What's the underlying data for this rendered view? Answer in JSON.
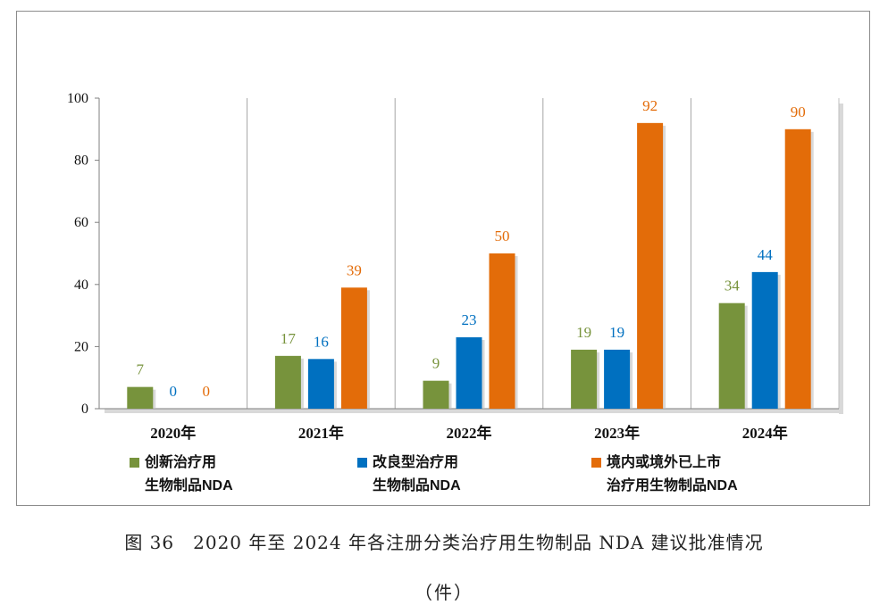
{
  "chart_data": {
    "type": "bar",
    "title": "",
    "xlabel": "",
    "ylabel": "",
    "categories": [
      "2020年",
      "2021年",
      "2022年",
      "2023年",
      "2024年"
    ],
    "ylim": [
      0,
      100
    ],
    "yticks": [
      0,
      20,
      40,
      60,
      80,
      100
    ],
    "grid": false,
    "legend_position": "bottom",
    "series": [
      {
        "name": "创新治疗用生物制品NDA",
        "name_lines": [
          "创新治疗用",
          "生物制品NDA"
        ],
        "color": "#77933c",
        "values": [
          7,
          17,
          9,
          19,
          34
        ]
      },
      {
        "name": "改良型治疗用生物制品NDA",
        "name_lines": [
          "改良型治疗用",
          "生物制品NDA"
        ],
        "color": "#0070c0",
        "values": [
          0,
          16,
          23,
          19,
          44
        ]
      },
      {
        "name": "境内或境外已上市治疗用生物制品NDA",
        "name_lines": [
          "境内或境外已上市",
          "治疗用生物制品NDA"
        ],
        "color": "#e36c09",
        "values": [
          0,
          39,
          50,
          92,
          90
        ]
      }
    ]
  },
  "caption": {
    "line1": "图 36　2020 年至 2024 年各注册分类治疗用生物制品 NDA 建议批准情况",
    "line2": "（件）"
  }
}
